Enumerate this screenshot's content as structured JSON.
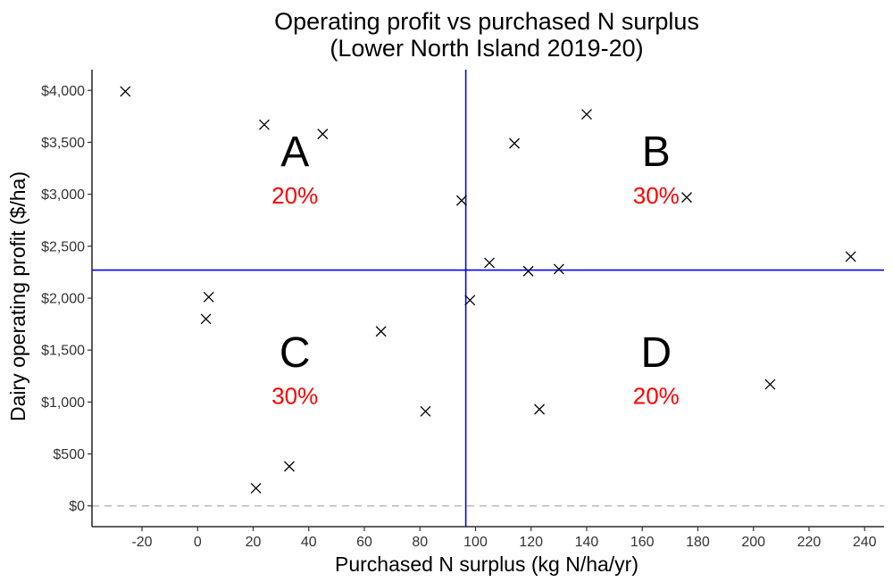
{
  "chart_data": {
    "type": "scatter",
    "title": "Operating profit vs purchased N surplus",
    "subtitle": "(Lower North Island 2019-20)",
    "xlabel": "Purchased N surplus (kg N/ha/yr)",
    "ylabel": "Dairy operating profit ($/ha)",
    "xlim": [
      -38,
      247
    ],
    "ylim": [
      -200,
      4200
    ],
    "x_ticks": [
      -20,
      0,
      20,
      40,
      60,
      80,
      100,
      120,
      140,
      160,
      180,
      200,
      220,
      240
    ],
    "x_tick_labels": [
      "-20",
      "0",
      "20",
      "40",
      "60",
      "80",
      "100",
      "120",
      "140",
      "160",
      "180",
      "200",
      "220",
      "240"
    ],
    "y_ticks": [
      0,
      500,
      1000,
      1500,
      2000,
      2500,
      3000,
      3500,
      4000
    ],
    "y_tick_labels": [
      "$0",
      "$500",
      "$1,000",
      "$1,500",
      "$2,000",
      "$2,500",
      "$3,000",
      "$3,500",
      "$4,000"
    ],
    "grid": false,
    "marker": "x",
    "colors": {
      "points": "#000000",
      "divider": "#0000ff",
      "zero_line": "#bbbbbb",
      "percent": "#ff0000"
    },
    "points": [
      {
        "x": -26,
        "y": 3990
      },
      {
        "x": 24,
        "y": 3670
      },
      {
        "x": 45,
        "y": 3580
      },
      {
        "x": 4,
        "y": 2010
      },
      {
        "x": 3,
        "y": 1800
      },
      {
        "x": 66,
        "y": 1680
      },
      {
        "x": 82,
        "y": 910
      },
      {
        "x": 33,
        "y": 380
      },
      {
        "x": 21,
        "y": 170
      },
      {
        "x": 95,
        "y": 2940
      },
      {
        "x": 98,
        "y": 1980
      },
      {
        "x": 105,
        "y": 2340
      },
      {
        "x": 114,
        "y": 3490
      },
      {
        "x": 119,
        "y": 2260
      },
      {
        "x": 130,
        "y": 2280
      },
      {
        "x": 140,
        "y": 3770
      },
      {
        "x": 176,
        "y": 2970
      },
      {
        "x": 235,
        "y": 2400
      },
      {
        "x": 123,
        "y": 930
      },
      {
        "x": 206,
        "y": 1170
      }
    ],
    "vertical_line_x": 96.5,
    "horizontal_line_y": 2270,
    "reference_line_y": 0,
    "quadrants": [
      {
        "letter": "A",
        "percent": "20%",
        "x": 35,
        "y_letter": 3270,
        "y_pct": 2910
      },
      {
        "letter": "B",
        "percent": "30%",
        "x": 165,
        "y_letter": 3270,
        "y_pct": 2910
      },
      {
        "letter": "C",
        "percent": "30%",
        "x": 35,
        "y_letter": 1340,
        "y_pct": 980
      },
      {
        "letter": "D",
        "percent": "20%",
        "x": 165,
        "y_letter": 1340,
        "y_pct": 980
      }
    ]
  }
}
